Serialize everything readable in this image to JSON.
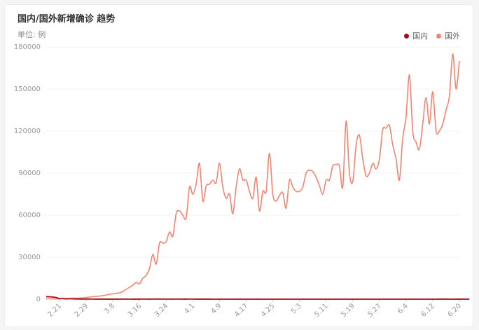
{
  "title": "国内/国外新增确诊 趋势",
  "unit_label": "单位: 例",
  "chart_data": {
    "type": "line",
    "title": "国内/国外新增确诊 趋势",
    "ylabel": "单位: 例",
    "ylim": [
      0,
      180000
    ],
    "y_ticks": [
      0,
      30000,
      60000,
      90000,
      120000,
      150000,
      180000
    ],
    "x_ticks": [
      "2.21",
      "2.29",
      "3.8",
      "3.16",
      "3.24",
      "4.1",
      "4.9",
      "4.17",
      "4.25",
      "5.3",
      "5.11",
      "5.19",
      "5.27",
      "6.4",
      "6.12",
      "6.20"
    ],
    "x_tick_index": [
      4,
      12,
      20,
      28,
      36,
      44,
      52,
      60,
      68,
      76,
      84,
      92,
      100,
      108,
      116,
      124
    ],
    "legend_position": "top-right",
    "grid": true,
    "series": [
      {
        "name": "国内",
        "color": "#a80d10",
        "values": [
          1800,
          1700,
          1500,
          1200,
          400,
          500,
          200,
          300,
          200,
          150,
          100,
          80,
          100,
          80,
          60,
          40,
          30,
          30,
          25,
          20,
          40,
          30,
          40,
          50,
          40,
          50,
          40,
          30,
          40,
          50,
          60,
          40,
          80,
          90,
          100,
          80,
          60,
          50,
          40,
          60,
          50,
          40,
          30,
          80,
          60,
          40,
          30,
          30,
          20,
          20,
          15,
          10,
          15,
          10,
          15,
          10,
          10,
          10,
          20,
          10,
          10,
          8,
          10,
          20,
          10,
          8,
          6,
          5,
          4,
          10,
          15,
          8,
          6,
          5,
          4,
          3,
          2,
          4,
          5,
          3,
          2,
          2,
          3,
          2,
          3,
          5,
          3,
          2,
          2,
          1,
          3,
          2,
          4,
          5,
          3,
          3,
          4,
          3,
          2,
          1,
          5,
          4,
          3,
          5,
          4,
          6,
          5,
          8,
          5,
          6,
          4,
          3,
          4,
          3,
          3,
          4,
          6,
          10,
          30,
          25,
          20,
          15,
          10,
          20,
          25,
          20,
          15,
          12
        ]
      },
      {
        "name": "国外",
        "color": "#f88270",
        "values": [
          200,
          200,
          200,
          200,
          300,
          400,
          500,
          600,
          700,
          700,
          800,
          1000,
          1200,
          1500,
          1800,
          2000,
          2200,
          2500,
          3000,
          3500,
          3800,
          4200,
          4500,
          5500,
          7000,
          8500,
          10000,
          12000,
          11000,
          15000,
          17000,
          22000,
          32000,
          25000,
          40000,
          40000,
          41000,
          48000,
          45000,
          61000,
          63000,
          60000,
          58000,
          80000,
          75000,
          82000,
          97000,
          70000,
          81000,
          82000,
          85000,
          83000,
          97000,
          80000,
          72000,
          75000,
          61000,
          80000,
          93000,
          85000,
          85000,
          77000,
          72000,
          87000,
          63000,
          77000,
          77000,
          104000,
          75000,
          70000,
          74000,
          76000,
          65000,
          85000,
          80000,
          77000,
          77000,
          80000,
          90000,
          92000,
          91000,
          87000,
          81000,
          75000,
          85000,
          85000,
          95000,
          96000,
          95000,
          80000,
          127000,
          90000,
          84000,
          110000,
          117000,
          100000,
          88000,
          90000,
          97000,
          93000,
          100000,
          121000,
          122000,
          124000,
          110000,
          100000,
          85000,
          115000,
          130000,
          160000,
          120000,
          112000,
          107000,
          125000,
          144000,
          125000,
          148000,
          120000,
          120000,
          125000,
          135000,
          145000,
          175000,
          150000,
          170000
        ]
      }
    ]
  }
}
